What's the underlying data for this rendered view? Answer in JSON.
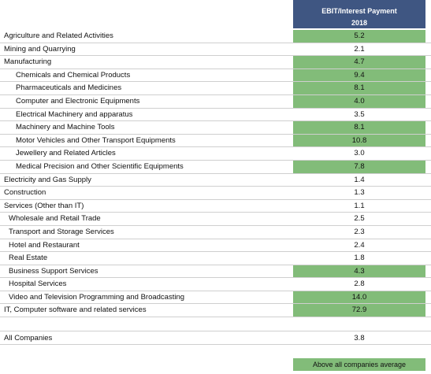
{
  "header": {
    "metric": "EBIT/Interest Payment",
    "year": "2018"
  },
  "colors": {
    "header_bg": "#3f5682",
    "highlight": "#82bc79"
  },
  "rows": [
    {
      "label": "Agriculture and Related Activities",
      "value": "5.2",
      "highlight": true
    },
    {
      "label": "Mining and Quarrying",
      "value": "2.1",
      "highlight": false
    },
    {
      "label": "Manufacturing",
      "value": "4.7",
      "highlight": true
    },
    {
      "label": "Chemicals and Chemical Products",
      "value": "9.4",
      "highlight": true
    },
    {
      "label": "Pharmaceuticals and Medicines",
      "value": "8.1",
      "highlight": true
    },
    {
      "label": "Computer and Electronic Equipments",
      "value": "4.0",
      "highlight": true
    },
    {
      "label": "Electrical Machinery and apparatus",
      "value": "3.5",
      "highlight": false
    },
    {
      "label": "Machinery and Machine Tools",
      "value": "8.1",
      "highlight": true
    },
    {
      "label": "Motor Vehicles and Other Transport Equipments",
      "value": "10.8",
      "highlight": true
    },
    {
      "label": "Jewellery and Related Articles",
      "value": "3.0",
      "highlight": false
    },
    {
      "label": "Medical Precision and Other Scientific Equipments",
      "value": "7.8",
      "highlight": true
    },
    {
      "label": "Electricity and Gas Supply",
      "value": "1.4",
      "highlight": false
    },
    {
      "label": "Construction",
      "value": "1.3",
      "highlight": false
    },
    {
      "label": "Services (Other than IT)",
      "value": "1.1",
      "highlight": false
    },
    {
      "label": "Wholesale and Retail Trade",
      "value": "2.5",
      "highlight": false
    },
    {
      "label": "Transport and Storage Services",
      "value": "2.3",
      "highlight": false
    },
    {
      "label": "Hotel and Restaurant",
      "value": "2.4",
      "highlight": false
    },
    {
      "label": "Real Estate",
      "value": "1.8",
      "highlight": false
    },
    {
      "label": "Business Support Services",
      "value": "4.3",
      "highlight": true
    },
    {
      "label": "Hospital Services",
      "value": "2.8",
      "highlight": false
    },
    {
      "label": "Video and Television Programming and Broadcasting",
      "value": "14.0",
      "highlight": true
    },
    {
      "label": "IT, Computer software and related services",
      "value": "72.9",
      "highlight": true
    }
  ],
  "total": {
    "label": "All Companies",
    "value": "3.8"
  },
  "legend": {
    "label": "Above all companies average"
  }
}
